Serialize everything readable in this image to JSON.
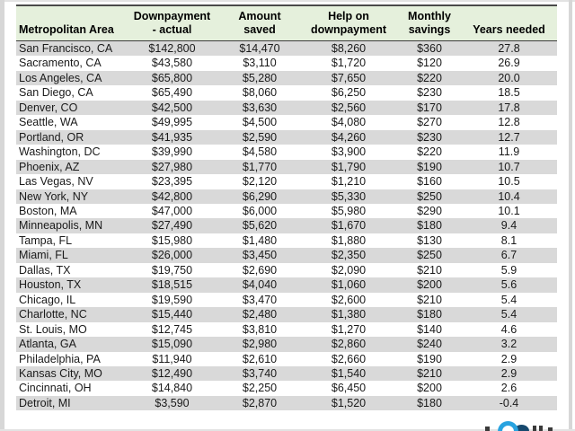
{
  "table": {
    "column_keys": [
      "metro",
      "downpayment_actual",
      "amount_saved",
      "help_on_downpayment",
      "monthly_savings",
      "years_needed"
    ],
    "columns": [
      {
        "line1": "",
        "line2": "Metropolitan Area"
      },
      {
        "line1": "Downpayment",
        "line2": "- actual"
      },
      {
        "line1": "",
        "line2": "Amount saved"
      },
      {
        "line1": "Help on",
        "line2": "downpayment"
      },
      {
        "line1": "Monthly",
        "line2": "savings"
      },
      {
        "line1": "",
        "line2": "Years needed"
      }
    ],
    "rows": [
      {
        "cells": [
          "San Francisco, CA",
          "$142,800",
          "$14,470",
          "$8,260",
          "$360",
          "27.8"
        ]
      },
      {
        "cells": [
          "Sacramento, CA",
          "$43,580",
          "$3,110",
          "$1,720",
          "$120",
          "26.9"
        ]
      },
      {
        "cells": [
          "Los Angeles, CA",
          "$65,800",
          "$5,280",
          "$7,650",
          "$220",
          "20.0"
        ]
      },
      {
        "cells": [
          "San Diego, CA",
          "$65,490",
          "$8,060",
          "$6,250",
          "$230",
          "18.5"
        ]
      },
      {
        "cells": [
          "Denver, CO",
          "$42,500",
          "$3,630",
          "$2,560",
          "$170",
          "17.8"
        ]
      },
      {
        "cells": [
          "Seattle, WA",
          "$49,995",
          "$4,500",
          "$4,080",
          "$270",
          "12.8"
        ]
      },
      {
        "cells": [
          "Portland, OR",
          "$41,935",
          "$2,590",
          "$4,260",
          "$230",
          "12.7"
        ]
      },
      {
        "cells": [
          "Washington, DC",
          "$39,990",
          "$4,580",
          "$3,900",
          "$220",
          "11.9"
        ]
      },
      {
        "cells": [
          "Phoenix, AZ",
          "$27,980",
          "$1,770",
          "$1,790",
          "$190",
          "10.7"
        ]
      },
      {
        "cells": [
          "Las Vegas, NV",
          "$23,395",
          "$2,120",
          "$1,210",
          "$160",
          "10.5"
        ]
      },
      {
        "cells": [
          "New York, NY",
          "$42,800",
          "$6,290",
          "$5,330",
          "$250",
          "10.4"
        ]
      },
      {
        "cells": [
          "Boston, MA",
          "$47,000",
          "$6,000",
          "$5,980",
          "$290",
          "10.1"
        ]
      },
      {
        "cells": [
          "Minneapolis, MN",
          "$27,490",
          "$5,620",
          "$1,670",
          "$180",
          "9.4"
        ]
      },
      {
        "cells": [
          "Tampa, FL",
          "$15,980",
          "$1,480",
          "$1,880",
          "$130",
          "8.1"
        ]
      },
      {
        "cells": [
          "Miami, FL",
          "$26,000",
          "$3,450",
          "$2,350",
          "$250",
          "6.7"
        ]
      },
      {
        "cells": [
          "Dallas, TX",
          "$19,750",
          "$2,690",
          "$2,090",
          "$210",
          "5.9"
        ]
      },
      {
        "cells": [
          "Houston, TX",
          "$18,515",
          "$4,040",
          "$1,060",
          "$200",
          "5.6"
        ]
      },
      {
        "cells": [
          "Chicago, IL",
          "$19,590",
          "$3,470",
          "$2,600",
          "$210",
          "5.4"
        ]
      },
      {
        "cells": [
          "Charlotte, NC",
          "$15,440",
          "$2,480",
          "$1,380",
          "$180",
          "5.4"
        ]
      },
      {
        "cells": [
          "St. Louis, MO",
          "$12,745",
          "$3,810",
          "$1,270",
          "$140",
          "4.6"
        ]
      },
      {
        "cells": [
          "Atlanta, GA",
          "$15,090",
          "$2,980",
          "$2,860",
          "$240",
          "3.2"
        ]
      },
      {
        "cells": [
          "Philadelphia, PA",
          "$11,940",
          "$2,610",
          "$2,660",
          "$190",
          "2.9"
        ]
      },
      {
        "cells": [
          "Kansas City, MO",
          "$12,490",
          "$3,740",
          "$1,540",
          "$210",
          "2.9"
        ]
      },
      {
        "cells": [
          "Cincinnati, OH",
          "$14,840",
          "$2,250",
          "$6,450",
          "$200",
          "2.6"
        ]
      },
      {
        "cells": [
          "Detroit, MI",
          "$3,590",
          "$2,870",
          "$1,520",
          "$180",
          "-0.4"
        ]
      }
    ]
  },
  "chart_data": {
    "type": "table",
    "title": "",
    "columns": [
      "Metropolitan Area",
      "Downpayment - actual",
      "Amount saved",
      "Help on downpayment",
      "Monthly savings",
      "Years needed"
    ],
    "rows": [
      [
        "San Francisco, CA",
        142800,
        14470,
        8260,
        360,
        27.8
      ],
      [
        "Sacramento, CA",
        43580,
        3110,
        1720,
        120,
        26.9
      ],
      [
        "Los Angeles, CA",
        65800,
        5280,
        7650,
        220,
        20.0
      ],
      [
        "San Diego, CA",
        65490,
        8060,
        6250,
        230,
        18.5
      ],
      [
        "Denver, CO",
        42500,
        3630,
        2560,
        170,
        17.8
      ],
      [
        "Seattle, WA",
        49995,
        4500,
        4080,
        270,
        12.8
      ],
      [
        "Portland, OR",
        41935,
        2590,
        4260,
        230,
        12.7
      ],
      [
        "Washington, DC",
        39990,
        4580,
        3900,
        220,
        11.9
      ],
      [
        "Phoenix, AZ",
        27980,
        1770,
        1790,
        190,
        10.7
      ],
      [
        "Las Vegas, NV",
        23395,
        2120,
        1210,
        160,
        10.5
      ],
      [
        "New York, NY",
        42800,
        6290,
        5330,
        250,
        10.4
      ],
      [
        "Boston, MA",
        47000,
        6000,
        5980,
        290,
        10.1
      ],
      [
        "Minneapolis, MN",
        27490,
        5620,
        1670,
        180,
        9.4
      ],
      [
        "Tampa, FL",
        15980,
        1480,
        1880,
        130,
        8.1
      ],
      [
        "Miami, FL",
        26000,
        3450,
        2350,
        250,
        6.7
      ],
      [
        "Dallas, TX",
        19750,
        2690,
        2090,
        210,
        5.9
      ],
      [
        "Houston, TX",
        18515,
        4040,
        1060,
        200,
        5.6
      ],
      [
        "Chicago, IL",
        19590,
        3470,
        2600,
        210,
        5.4
      ],
      [
        "Charlotte, NC",
        15440,
        2480,
        1380,
        180,
        5.4
      ],
      [
        "St. Louis, MO",
        12745,
        3810,
        1270,
        140,
        4.6
      ],
      [
        "Atlanta, GA",
        15090,
        2980,
        2860,
        240,
        3.2
      ],
      [
        "Philadelphia, PA",
        11940,
        2610,
        2660,
        190,
        2.9
      ],
      [
        "Kansas City, MO",
        12490,
        3740,
        1540,
        210,
        2.9
      ],
      [
        "Cincinnati, OH",
        14840,
        2250,
        6450,
        200,
        2.6
      ],
      [
        "Detroit, MI",
        3590,
        2870,
        1520,
        180,
        -0.4
      ]
    ]
  },
  "colors": {
    "header_bg": "#e5f0dc",
    "stripe_bg": "#d9d9d9",
    "header_border": "#3b3b3b",
    "logo_blue": "#29a3e0",
    "logo_navy": "#17496e"
  }
}
